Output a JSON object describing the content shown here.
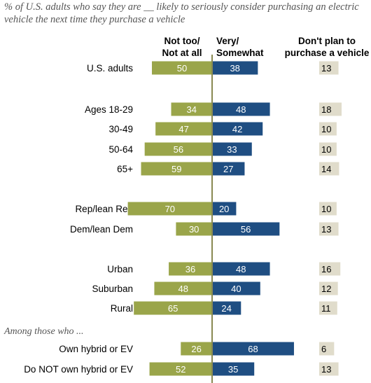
{
  "subtitle": "% of U.S. adults who say they are __ likely to seriously consider purchasing an electric vehicle the next time they purchase a vehicle",
  "headers": {
    "not_likely": [
      "Not too/",
      "Not at all"
    ],
    "likely": [
      "Very/",
      "Somewhat"
    ],
    "no_plan": [
      "Don't plan to",
      "purchase a vehicle"
    ]
  },
  "section_label": "Among those who ...",
  "colors": {
    "not_likely": "#9aa54a",
    "likely": "#1f4e82",
    "no_plan_box": "#e0dccb",
    "axis": "#8a8a52"
  },
  "chart_data": {
    "type": "bar",
    "orientation": "diverging-horizontal",
    "categories": [
      "U.S. adults",
      "Ages 18-29",
      "30-49",
      "50-64",
      "65+",
      "Rep/lean Rep",
      "Dem/lean Dem",
      "Urban",
      "Suburban",
      "Rural",
      "Own hybrid or EV",
      "Do NOT own hybrid or EV"
    ],
    "series": [
      {
        "name": "Not too/ Not at all",
        "values": [
          50,
          34,
          47,
          56,
          59,
          70,
          30,
          36,
          48,
          65,
          26,
          52
        ]
      },
      {
        "name": "Very/ Somewhat",
        "values": [
          38,
          48,
          42,
          33,
          27,
          20,
          56,
          48,
          40,
          24,
          68,
          35
        ]
      },
      {
        "name": "Don't plan to purchase a vehicle",
        "values": [
          13,
          18,
          10,
          10,
          14,
          10,
          13,
          16,
          12,
          11,
          6,
          13
        ]
      }
    ]
  }
}
